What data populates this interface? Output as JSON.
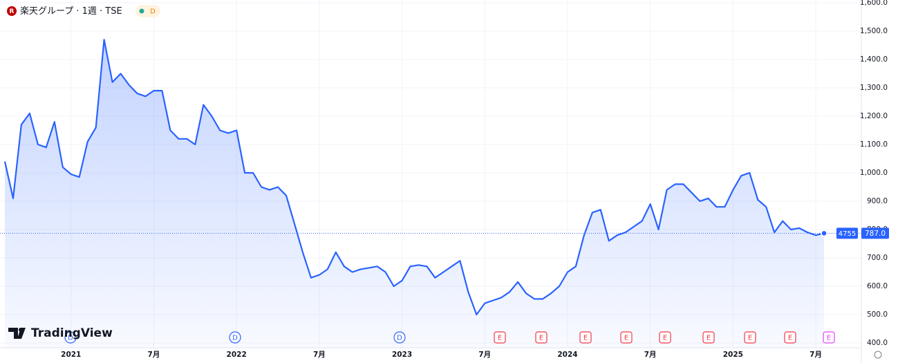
{
  "chart_data": {
    "type": "line",
    "title": "楽天グループ · 1週 · TSE",
    "logo_letter": "R",
    "badge": "D",
    "brand": "TradingView",
    "ticker": "4755",
    "last_price_label": "787.0",
    "color": "#2962ff",
    "grid": true,
    "categories": [
      null,
      null,
      null,
      null,
      null,
      null,
      null,
      null,
      "2021",
      null,
      null,
      null,
      null,
      null,
      null,
      null,
      null,
      null,
      "7月",
      null,
      null,
      null,
      null,
      null,
      null,
      null,
      null,
      null,
      "2022",
      null,
      null,
      null,
      null,
      null,
      null,
      null,
      null,
      null,
      "7月",
      null,
      null,
      null,
      null,
      null,
      null,
      null,
      null,
      null,
      "2023",
      null,
      null,
      null,
      null,
      null,
      null,
      null,
      null,
      null,
      "7月",
      null,
      null,
      null,
      null,
      null,
      null,
      null,
      null,
      null,
      "2024",
      null,
      null,
      null,
      null,
      null,
      null,
      null,
      null,
      null,
      "7月",
      null,
      null,
      null,
      null,
      null,
      null,
      null,
      null,
      null,
      "2025",
      null,
      null,
      null,
      null,
      null,
      null,
      null,
      null,
      null,
      "7月",
      null
    ],
    "values": [
      1040,
      910,
      1170,
      1210,
      1100,
      1090,
      1180,
      1020,
      995,
      985,
      1110,
      1160,
      1470,
      1320,
      1350,
      1310,
      1280,
      1270,
      1290,
      1290,
      1150,
      1120,
      1120,
      1100,
      1240,
      1200,
      1150,
      1140,
      1150,
      1000,
      1000,
      950,
      940,
      950,
      920,
      820,
      720,
      630,
      640,
      660,
      720,
      670,
      650,
      660,
      665,
      670,
      650,
      600,
      620,
      670,
      675,
      670,
      630,
      650,
      670,
      690,
      580,
      500,
      540,
      550,
      560,
      580,
      615,
      575,
      555,
      555,
      575,
      600,
      650,
      670,
      780,
      860,
      870,
      760,
      780,
      790,
      810,
      830,
      890,
      800,
      940,
      960,
      960,
      930,
      900,
      910,
      880,
      880,
      940,
      990,
      1000,
      905,
      880,
      790,
      830,
      800,
      805,
      790,
      780,
      787
    ],
    "ylim": [
      400,
      1600
    ],
    "yticks": [
      {
        "value": 400,
        "label": "400.0"
      },
      {
        "value": 500,
        "label": "500.0"
      },
      {
        "value": 600,
        "label": "600.0"
      },
      {
        "value": 700,
        "label": "700.0"
      },
      {
        "value": 800,
        "label": "800.0"
      },
      {
        "value": 900,
        "label": "900.0"
      },
      {
        "value": 1000,
        "label": "1,000.0"
      },
      {
        "value": 1100,
        "label": "1,100.0"
      },
      {
        "value": 1200,
        "label": "1,200.0"
      },
      {
        "value": 1300,
        "label": "1,300.0"
      },
      {
        "value": 1400,
        "label": "1,400.0"
      },
      {
        "value": 1500,
        "label": "1,500.0"
      },
      {
        "value": 1600,
        "label": "1,600.0"
      }
    ],
    "events": [
      "D",
      "D",
      "D",
      "E",
      "E",
      "E",
      "E",
      "E",
      "E",
      "E",
      "E",
      "E"
    ]
  }
}
